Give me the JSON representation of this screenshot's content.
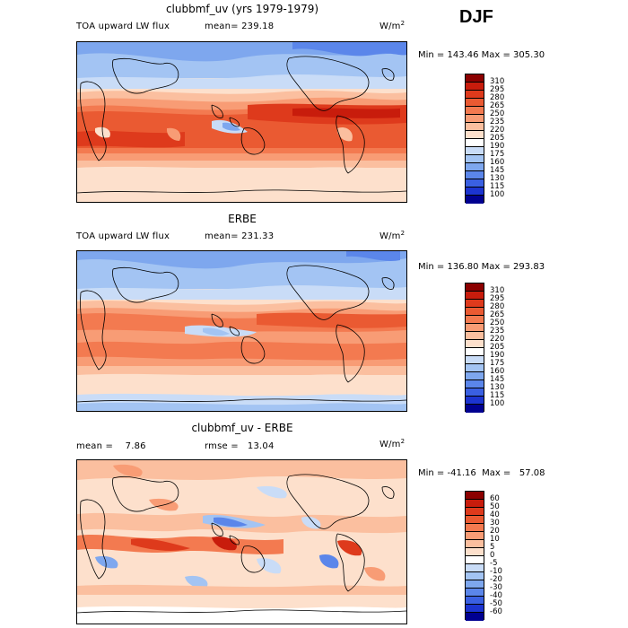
{
  "season": "DJF",
  "units_base": "W/m",
  "units_exp": "2",
  "panels": [
    {
      "title": "clubbmf_uv (yrs 1979-1979)",
      "left_label": "TOA upward LW flux",
      "stat1": "mean= 239.18",
      "stat2": "",
      "minmax": "Min = 143.46  Max = 305.30",
      "levels": [
        "310",
        "295",
        "280",
        "265",
        "250",
        "235",
        "220",
        "205",
        "190",
        "175",
        "160",
        "145",
        "130",
        "115",
        "100"
      ],
      "colors": [
        "#8b0000",
        "#c81c0c",
        "#de3a1c",
        "#ea5a32",
        "#f37a50",
        "#f89c75",
        "#fbbf9f",
        "#fde0cc",
        "#ffffff",
        "#c9dcf7",
        "#a3c4f3",
        "#7ea7ee",
        "#5b86ea",
        "#3a60e2",
        "#1c34d0",
        "#000090"
      ]
    },
    {
      "title": "ERBE",
      "left_label": "TOA upward LW flux",
      "stat1": "mean= 231.33",
      "stat2": "",
      "minmax": "Min = 136.80  Max = 293.83",
      "levels": [
        "310",
        "295",
        "280",
        "265",
        "250",
        "235",
        "220",
        "205",
        "190",
        "175",
        "160",
        "145",
        "130",
        "115",
        "100"
      ],
      "colors": [
        "#8b0000",
        "#c81c0c",
        "#de3a1c",
        "#ea5a32",
        "#f37a50",
        "#f89c75",
        "#fbbf9f",
        "#fde0cc",
        "#ffffff",
        "#c9dcf7",
        "#a3c4f3",
        "#7ea7ee",
        "#5b86ea",
        "#3a60e2",
        "#1c34d0",
        "#000090"
      ]
    },
    {
      "title": "clubbmf_uv - ERBE",
      "left_label": "",
      "stat1": "mean =    7.86",
      "stat2": "rmse =   13.04",
      "minmax": "Min = -41.16  Max =   57.08",
      "levels": [
        "60",
        "50",
        "40",
        "30",
        "20",
        "10",
        "5",
        "0",
        "-5",
        "-10",
        "-20",
        "-30",
        "-40",
        "-50",
        "-60"
      ],
      "colors": [
        "#8b0000",
        "#c81c0c",
        "#de3a1c",
        "#ea5a32",
        "#f37a50",
        "#f89c75",
        "#fbbf9f",
        "#fde0cc",
        "#ffffff",
        "#c9dcf7",
        "#a3c4f3",
        "#7ea7ee",
        "#5b86ea",
        "#3a60e2",
        "#1c34d0",
        "#000090"
      ]
    }
  ]
}
